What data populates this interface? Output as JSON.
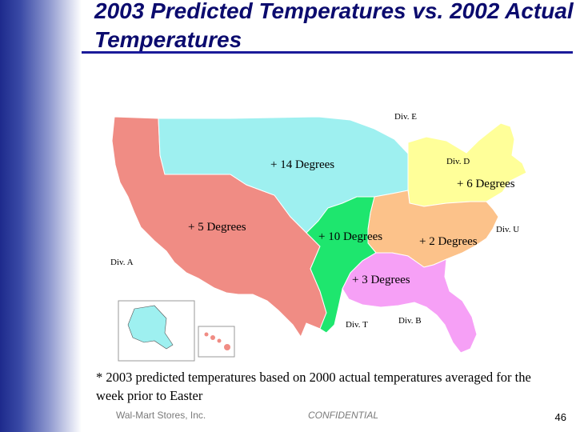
{
  "slide": {
    "title": "2003 Predicted Temperatures vs. 2002 Actual Temperatures",
    "footnote": "* 2003 predicted temperatures based on 2000 actual temperatures averaged for the week prior to Easter",
    "company": "Wal-Mart Stores, Inc.",
    "confidentiality": "CONFIDENTIAL",
    "page_number": "46"
  },
  "map": {
    "division_labels": {
      "e": "Div. E",
      "d": "Div. D",
      "u": "Div. U",
      "a": "Div. A",
      "t": "Div. T",
      "b": "Div. B"
    },
    "temperature_labels": {
      "north_central": "+ 14 Degrees",
      "northeast": "+ 6 Degrees",
      "west": "+ 5 Degrees",
      "central_south": "+ 10 Degrees",
      "southeast": "+ 2 Degrees",
      "gulf": "+ 3 Degrees"
    },
    "region_colors": {
      "west": "#f08c84",
      "north_central": "#9ef0f0",
      "northeast": "#ffff99",
      "southeast": "#fcc28a",
      "central_south": "#1ee66e",
      "gulf": "#f6a0f6"
    }
  }
}
